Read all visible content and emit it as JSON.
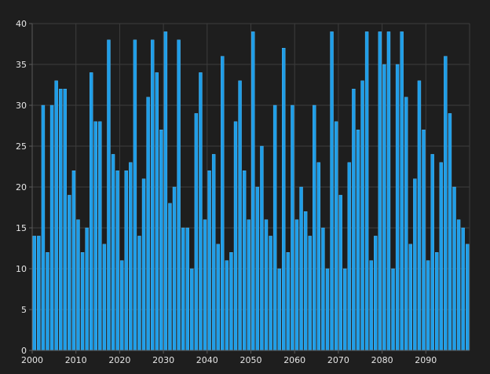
{
  "theme": {
    "background": "#1e1e1e",
    "bar_color": "#1f9ee8",
    "bar_edge": "#5cc2ff",
    "grid_color": "#3d3d3d",
    "text_color": "#e6e6e6"
  },
  "chart_data": {
    "type": "bar",
    "title": "",
    "xlabel": "",
    "ylabel": "",
    "x_start": 2000,
    "x_end": 2099,
    "xlim": [
      2000,
      2100
    ],
    "ylim": [
      0,
      40
    ],
    "x_ticks": [
      2000,
      2010,
      2020,
      2030,
      2040,
      2050,
      2060,
      2070,
      2080,
      2090
    ],
    "y_ticks": [
      0,
      5,
      10,
      15,
      20,
      25,
      30,
      35,
      40
    ],
    "grid": true,
    "legend": "none",
    "values": [
      14,
      14,
      30,
      12,
      30,
      33,
      32,
      32,
      19,
      22,
      16,
      12,
      15,
      34,
      28,
      28,
      13,
      38,
      24,
      22,
      11,
      22,
      23,
      38,
      14,
      21,
      31,
      38,
      34,
      27,
      39,
      18,
      20,
      38,
      15,
      15,
      10,
      29,
      34,
      16,
      22,
      24,
      13,
      36,
      11,
      12,
      28,
      33,
      22,
      16,
      39,
      20,
      25,
      16,
      14,
      30,
      10,
      37,
      12,
      30,
      16,
      20,
      17,
      14,
      30,
      23,
      15,
      10,
      39,
      28,
      19,
      10,
      23,
      32,
      27,
      33,
      39,
      11,
      14,
      39,
      35,
      39,
      10,
      35,
      39,
      31,
      13,
      21,
      33,
      27,
      11,
      24,
      12,
      23,
      36,
      29,
      20,
      16,
      15,
      13
    ]
  }
}
